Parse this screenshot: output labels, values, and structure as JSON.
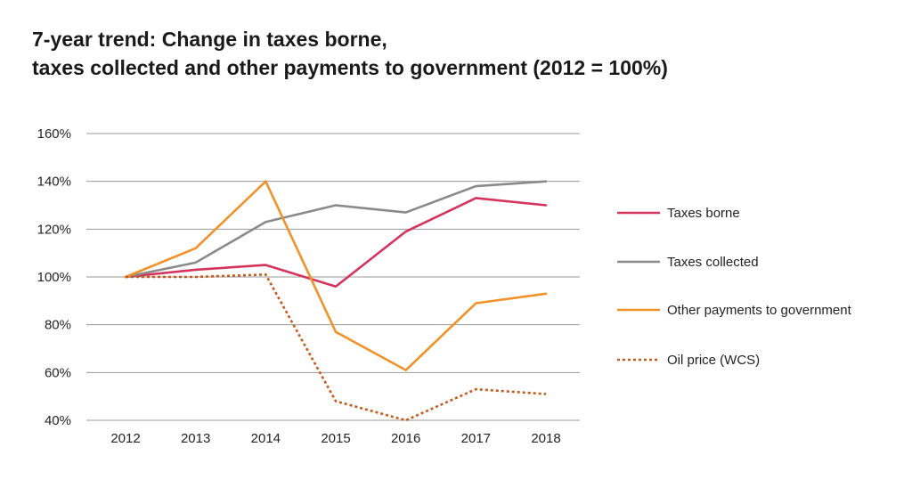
{
  "chart_data": {
    "type": "line",
    "title": "7-year trend: Change in taxes borne,",
    "subtitle": "taxes collected and other payments to government (2012 = 100%)",
    "xlabel": "",
    "ylabel": "",
    "categories": [
      "2012",
      "2013",
      "2014",
      "2015",
      "2016",
      "2017",
      "2018"
    ],
    "ylim": [
      40,
      160
    ],
    "yticks": [
      40,
      60,
      80,
      100,
      120,
      140,
      160
    ],
    "ytick_labels": [
      "40%",
      "60%",
      "80%",
      "100%",
      "120%",
      "140%",
      "160%"
    ],
    "grid": true,
    "legend_position": "right",
    "series": [
      {
        "name": "Taxes borne",
        "color": "#d6335c",
        "style": "solid",
        "values": [
          100,
          103,
          105,
          96,
          119,
          133,
          130
        ]
      },
      {
        "name": "Taxes collected",
        "color": "#8a8a8a",
        "style": "solid",
        "values": [
          100,
          106,
          123,
          130,
          127,
          138,
          140
        ]
      },
      {
        "name": "Other payments to government",
        "color": "#f0922a",
        "style": "solid",
        "values": [
          100,
          112,
          140,
          77,
          61,
          89,
          93
        ]
      },
      {
        "name": "Oil price (WCS)",
        "color": "#c65a1e",
        "style": "dotted",
        "values": [
          100,
          100,
          101,
          48,
          40,
          53,
          51
        ]
      }
    ]
  }
}
